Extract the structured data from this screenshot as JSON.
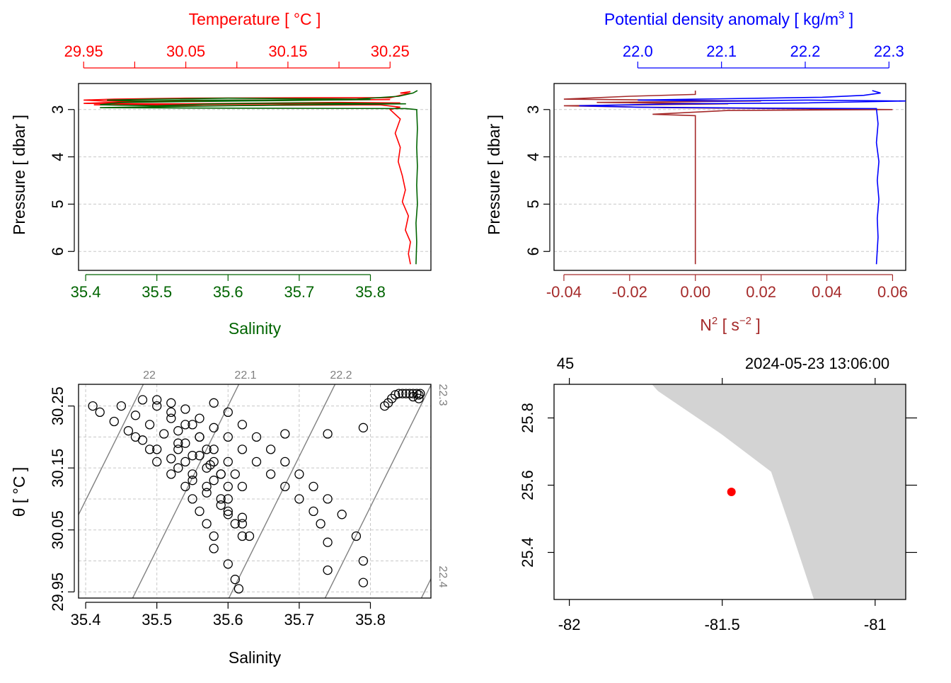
{
  "colors": {
    "temperature": "#ff0000",
    "salinity": "#006400",
    "density": "#0000ff",
    "n2": "#a52a2a",
    "grid": "#c8c8c8",
    "land": "#d3d3d3",
    "station": "#ff0000",
    "isopycnal": "#808080"
  },
  "panel_ts_profile": {
    "top_label": "Temperature [ °C ]",
    "bottom_label": "Salinity",
    "left_label": "Pressure [ dbar ]"
  },
  "panel_density_profile": {
    "top_label": "Potential density anomaly [ kg/m",
    "top_label_sup": "3",
    "top_label_end": " ]",
    "bottom_label": "N",
    "bottom_label_sup": "2",
    "bottom_label_mid": " [ s",
    "bottom_label_sup2": "−2",
    "bottom_label_end": " ]",
    "left_label": "Pressure [ dbar ]"
  },
  "panel_ts_diagram": {
    "x_label": "Salinity",
    "y_label": "θ [ °C ]"
  },
  "panel_map": {
    "top_left_text": "45",
    "top_right_text": "2024-05-23 13:06:00"
  },
  "chart_data": [
    {
      "type": "line",
      "panel": "temperature-salinity-profile",
      "y_axis": {
        "label": "Pressure [ dbar ]",
        "lim": [
          6.4,
          2.45
        ],
        "ticks": [
          "3",
          "4",
          "5",
          "6"
        ],
        "reversed": true
      },
      "x_top": {
        "label": "Temperature [ °C ]",
        "lim": [
          29.945,
          30.29
        ],
        "ticks": [
          "29.95",
          "30.05",
          "30.15",
          "30.25"
        ]
      },
      "x_bottom": {
        "label": "Salinity",
        "lim": [
          35.39,
          35.885
        ],
        "ticks": [
          "35.4",
          "35.5",
          "35.6",
          "35.7",
          "35.8"
        ]
      },
      "grid": true,
      "series": [
        {
          "name": "Temperature",
          "axis": "top",
          "pairs": [
            [
              30.27,
              2.62
            ],
            [
              30.26,
              2.65
            ],
            [
              30.27,
              2.66
            ],
            [
              30.26,
              2.7
            ],
            [
              30.25,
              2.75
            ],
            [
              30.18,
              2.75
            ],
            [
              30.05,
              2.76
            ],
            [
              29.98,
              2.78
            ],
            [
              29.95,
              2.8
            ],
            [
              29.97,
              2.82
            ],
            [
              30.05,
              2.81
            ],
            [
              30.15,
              2.8
            ],
            [
              30.25,
              2.79
            ],
            [
              30.1,
              2.8
            ],
            [
              30.0,
              2.83
            ],
            [
              29.95,
              2.87
            ],
            [
              30.05,
              2.88
            ],
            [
              30.2,
              2.85
            ],
            [
              30.26,
              2.86
            ],
            [
              30.15,
              2.88
            ],
            [
              29.96,
              2.9
            ],
            [
              30.05,
              2.92
            ],
            [
              30.24,
              2.9
            ],
            [
              30.26,
              2.95
            ],
            [
              30.25,
              3.0
            ],
            [
              30.26,
              3.2
            ],
            [
              30.255,
              3.5
            ],
            [
              30.26,
              3.8
            ],
            [
              30.258,
              4.1
            ],
            [
              30.262,
              4.4
            ],
            [
              30.265,
              4.7
            ],
            [
              30.262,
              4.95
            ],
            [
              30.268,
              5.25
            ],
            [
              30.265,
              5.55
            ],
            [
              30.27,
              5.8
            ],
            [
              30.268,
              6.05
            ],
            [
              30.27,
              6.27
            ]
          ]
        },
        {
          "name": "Salinity",
          "axis": "bottom",
          "pairs": [
            [
              35.866,
              2.6
            ],
            [
              35.86,
              2.65
            ],
            [
              35.84,
              2.72
            ],
            [
              35.78,
              2.78
            ],
            [
              35.6,
              2.76
            ],
            [
              35.5,
              2.78
            ],
            [
              35.43,
              2.8
            ],
            [
              35.47,
              2.82
            ],
            [
              35.55,
              2.8
            ],
            [
              35.65,
              2.8
            ],
            [
              35.8,
              2.79
            ],
            [
              35.62,
              2.82
            ],
            [
              35.45,
              2.85
            ],
            [
              35.42,
              2.9
            ],
            [
              35.5,
              2.92
            ],
            [
              35.58,
              2.88
            ],
            [
              35.7,
              2.86
            ],
            [
              35.85,
              2.88
            ],
            [
              35.7,
              2.9
            ],
            [
              35.55,
              2.93
            ],
            [
              35.42,
              2.96
            ],
            [
              35.6,
              2.97
            ],
            [
              35.85,
              2.98
            ],
            [
              35.865,
              3.0
            ],
            [
              35.866,
              3.4
            ],
            [
              35.865,
              3.8
            ],
            [
              35.866,
              4.2
            ],
            [
              35.865,
              4.6
            ],
            [
              35.866,
              5.0
            ],
            [
              35.864,
              5.4
            ],
            [
              35.865,
              5.8
            ],
            [
              35.864,
              6.27
            ]
          ]
        }
      ]
    },
    {
      "type": "line",
      "panel": "density-n2-profile",
      "y_axis": {
        "label": "Pressure [ dbar ]",
        "lim": [
          6.4,
          2.45
        ],
        "ticks": [
          "3",
          "4",
          "5",
          "6"
        ],
        "reversed": true
      },
      "x_top": {
        "label": "Potential density anomaly [ kg/m3 ]",
        "lim": [
          21.9,
          22.32
        ],
        "ticks": [
          "22.0",
          "22.1",
          "22.2",
          "22.3"
        ]
      },
      "x_bottom": {
        "label": "N2 [ s-2 ]",
        "lim": [
          -0.043,
          0.064
        ],
        "ticks": [
          "-0.04",
          "-0.02",
          "0.00",
          "0.02",
          "0.04",
          "0.06"
        ]
      },
      "grid": true,
      "series": [
        {
          "name": "Potential density anomaly",
          "axis": "top",
          "pairs": [
            [
              22.28,
              2.6
            ],
            [
              22.29,
              2.65
            ],
            [
              22.27,
              2.7
            ],
            [
              22.22,
              2.74
            ],
            [
              22.15,
              2.76
            ],
            [
              22.07,
              2.78
            ],
            [
              22.0,
              2.8
            ],
            [
              22.1,
              2.82
            ],
            [
              22.2,
              2.8
            ],
            [
              22.32,
              2.82
            ],
            [
              22.2,
              2.86
            ],
            [
              22.05,
              2.88
            ],
            [
              21.93,
              2.92
            ],
            [
              22.0,
              2.95
            ],
            [
              22.15,
              2.97
            ],
            [
              22.285,
              2.98
            ],
            [
              22.287,
              3.3
            ],
            [
              22.285,
              3.7
            ],
            [
              22.288,
              4.1
            ],
            [
              22.286,
              4.5
            ],
            [
              22.288,
              4.9
            ],
            [
              22.286,
              5.3
            ],
            [
              22.287,
              5.7
            ],
            [
              22.285,
              6.27
            ]
          ]
        },
        {
          "name": "N2",
          "axis": "bottom",
          "pairs": [
            [
              0.0,
              2.6
            ],
            [
              0.0,
              2.68
            ],
            [
              -0.02,
              2.72
            ],
            [
              -0.04,
              2.78
            ],
            [
              -0.01,
              2.8
            ],
            [
              0.02,
              2.82
            ],
            [
              -0.03,
              2.85
            ],
            [
              0.01,
              2.88
            ],
            [
              -0.04,
              2.92
            ],
            [
              -0.01,
              2.96
            ],
            [
              0.06,
              3.0
            ],
            [
              0.01,
              3.02
            ],
            [
              -0.013,
              3.1
            ],
            [
              0.0,
              3.13
            ],
            [
              0.0,
              3.5
            ],
            [
              0.0,
              4.0
            ],
            [
              0.0,
              4.5
            ],
            [
              0.0,
              5.0
            ],
            [
              0.0,
              5.5
            ],
            [
              0.0,
              6.0
            ],
            [
              0.0,
              6.27
            ]
          ]
        }
      ]
    },
    {
      "type": "scatter",
      "panel": "theta-salinity-diagram",
      "x_axis": {
        "label": "Salinity",
        "lim": [
          35.39,
          35.885
        ],
        "ticks": [
          "35.4",
          "35.5",
          "35.6",
          "35.7",
          "35.8"
        ]
      },
      "y_axis": {
        "label": "θ [ °C ]",
        "lim": [
          29.94,
          30.285
        ],
        "ticks": [
          "29.95",
          "30.05",
          "30.15",
          "30.25"
        ]
      },
      "grid": true,
      "isopycnal_labels": [
        "22",
        "22.1",
        "22.2",
        "22.3",
        "22.4"
      ],
      "points": [
        [
          35.41,
          30.25
        ],
        [
          35.42,
          30.24
        ],
        [
          35.44,
          30.225
        ],
        [
          35.46,
          30.21
        ],
        [
          35.48,
          30.195
        ],
        [
          35.5,
          30.18
        ],
        [
          35.52,
          30.165
        ],
        [
          35.53,
          30.15
        ],
        [
          35.55,
          30.13
        ],
        [
          35.57,
          30.11
        ],
        [
          35.59,
          30.09
        ],
        [
          35.6,
          30.075
        ],
        [
          35.62,
          30.06
        ],
        [
          35.45,
          30.25
        ],
        [
          35.47,
          30.235
        ],
        [
          35.49,
          30.22
        ],
        [
          35.51,
          30.205
        ],
        [
          35.53,
          30.19
        ],
        [
          35.55,
          30.17
        ],
        [
          35.57,
          30.15
        ],
        [
          35.58,
          30.13
        ],
        [
          35.6,
          30.1
        ],
        [
          35.62,
          30.07
        ],
        [
          35.63,
          30.04
        ],
        [
          35.48,
          30.26
        ],
        [
          35.5,
          30.25
        ],
        [
          35.52,
          30.24
        ],
        [
          35.54,
          30.22
        ],
        [
          35.56,
          30.2
        ],
        [
          35.58,
          30.18
        ],
        [
          35.6,
          30.16
        ],
        [
          35.61,
          30.14
        ],
        [
          35.62,
          30.12
        ],
        [
          35.5,
          30.26
        ],
        [
          35.52,
          30.255
        ],
        [
          35.54,
          30.245
        ],
        [
          35.56,
          30.23
        ],
        [
          35.58,
          30.215
        ],
        [
          35.6,
          30.2
        ],
        [
          35.62,
          30.18
        ],
        [
          35.64,
          30.16
        ],
        [
          35.66,
          30.14
        ],
        [
          35.68,
          30.12
        ],
        [
          35.7,
          30.1
        ],
        [
          35.72,
          30.08
        ],
        [
          35.73,
          30.06
        ],
        [
          35.74,
          30.03
        ],
        [
          35.74,
          29.985
        ],
        [
          35.58,
          30.255
        ],
        [
          35.6,
          30.24
        ],
        [
          35.62,
          30.22
        ],
        [
          35.64,
          30.2
        ],
        [
          35.66,
          30.18
        ],
        [
          35.68,
          30.16
        ],
        [
          35.7,
          30.14
        ],
        [
          35.72,
          30.12
        ],
        [
          35.74,
          30.1
        ],
        [
          35.76,
          30.075
        ],
        [
          35.78,
          30.04
        ],
        [
          35.79,
          30.0
        ],
        [
          35.79,
          29.965
        ],
        [
          35.47,
          30.2
        ],
        [
          35.49,
          30.18
        ],
        [
          35.5,
          30.16
        ],
        [
          35.52,
          30.14
        ],
        [
          35.54,
          30.12
        ],
        [
          35.55,
          30.1
        ],
        [
          35.56,
          30.08
        ],
        [
          35.57,
          30.06
        ],
        [
          35.58,
          30.04
        ],
        [
          35.58,
          30.02
        ],
        [
          35.6,
          29.995
        ],
        [
          35.61,
          29.97
        ],
        [
          35.615,
          29.955
        ],
        [
          35.53,
          30.18
        ],
        [
          35.54,
          30.16
        ],
        [
          35.55,
          30.14
        ],
        [
          35.57,
          30.12
        ],
        [
          35.59,
          30.1
        ],
        [
          35.6,
          30.08
        ],
        [
          35.61,
          30.06
        ],
        [
          35.62,
          30.04
        ],
        [
          35.55,
          30.22
        ],
        [
          35.56,
          30.2
        ],
        [
          35.57,
          30.18
        ],
        [
          35.58,
          30.16
        ],
        [
          35.59,
          30.14
        ],
        [
          35.6,
          30.12
        ],
        [
          35.52,
          30.23
        ],
        [
          35.53,
          30.21
        ],
        [
          35.54,
          30.19
        ],
        [
          35.56,
          30.17
        ],
        [
          35.575,
          30.155
        ],
        [
          35.59,
          30.14
        ],
        [
          35.68,
          30.205
        ],
        [
          35.74,
          30.205
        ],
        [
          35.79,
          30.215
        ],
        [
          35.82,
          30.25
        ],
        [
          35.825,
          30.255
        ],
        [
          35.83,
          30.262
        ],
        [
          35.835,
          30.268
        ],
        [
          35.84,
          30.27
        ],
        [
          35.845,
          30.27
        ],
        [
          35.85,
          30.27
        ],
        [
          35.855,
          30.27
        ],
        [
          35.86,
          30.27
        ],
        [
          35.865,
          30.27
        ],
        [
          35.868,
          30.268
        ],
        [
          35.87,
          30.27
        ],
        [
          35.868,
          30.262
        ],
        [
          35.86,
          30.265
        ]
      ]
    },
    {
      "type": "map",
      "panel": "station-map",
      "x_axis": {
        "lim": [
          -82.05,
          -80.9
        ],
        "ticks": [
          "-82",
          "-81.5",
          "-81"
        ]
      },
      "y_axis": {
        "lim": [
          25.26,
          25.9
        ],
        "ticks": [
          "25.4",
          "25.6",
          "25.8"
        ]
      },
      "station": {
        "lon": -81.47,
        "lat": 25.58
      },
      "land_polygon": [
        [
          -81.73,
          25.9
        ],
        [
          -81.71,
          25.88
        ],
        [
          -81.5,
          25.75
        ],
        [
          -81.34,
          25.64
        ],
        [
          -81.28,
          25.48
        ],
        [
          -81.2,
          25.26
        ],
        [
          -80.9,
          25.26
        ],
        [
          -80.9,
          25.9
        ]
      ]
    }
  ]
}
